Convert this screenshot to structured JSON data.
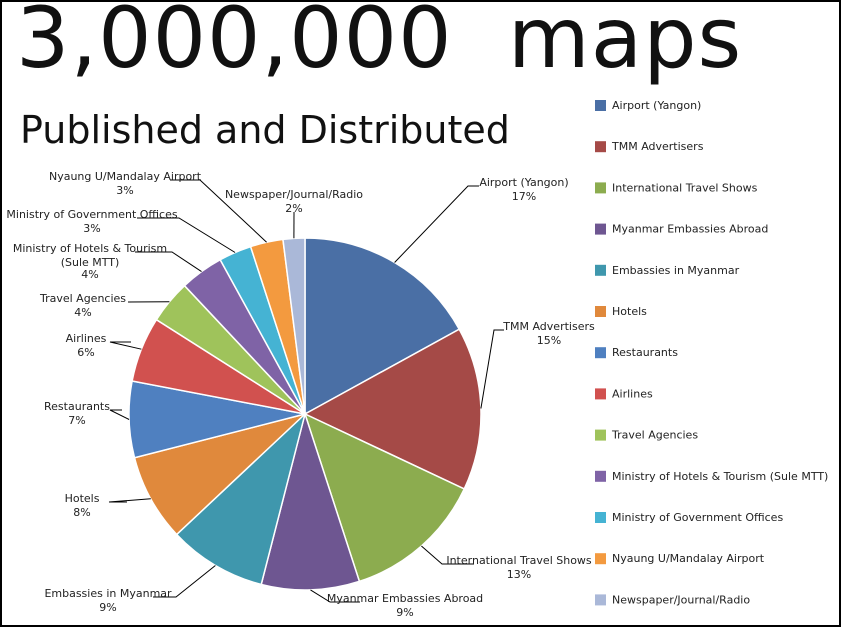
{
  "header": {
    "headline": "3,000,000  maps",
    "subheadline": "Published and Distributed"
  },
  "chart_data": {
    "type": "pie",
    "title": "3,000,000  maps",
    "subtitle": "Published and Distributed",
    "legend_position": "right",
    "slices": [
      {
        "label": "Airport (Yangon)",
        "value": 17,
        "value_label": "17%",
        "color": "#4a6fa5"
      },
      {
        "label": "TMM Advertisers",
        "value": 15,
        "value_label": "15%",
        "color": "#a54a47"
      },
      {
        "label": "International Travel Shows",
        "value": 13,
        "value_label": "13%",
        "color": "#8cac4f"
      },
      {
        "label": "Myanmar Embassies Abroad",
        "value": 9,
        "value_label": "9%",
        "color": "#6e5691"
      },
      {
        "label": "Embassies in Myanmar",
        "value": 9,
        "value_label": "9%",
        "color": "#3f97ad"
      },
      {
        "label": "Hotels",
        "value": 8,
        "value_label": "8%",
        "color": "#e0893c"
      },
      {
        "label": "Restaurants",
        "value": 7,
        "value_label": "7%",
        "color": "#4f80c0"
      },
      {
        "label": "Airlines",
        "value": 6,
        "value_label": "6%",
        "color": "#d1514f"
      },
      {
        "label": "Travel Agencies",
        "value": 4,
        "value_label": "4%",
        "color": "#9fc35b"
      },
      {
        "label": "Ministry of Hotels & Tourism (Sule MTT)",
        "label_lines": [
          "Ministry of Hotels & Tourism",
          "(Sule MTT)"
        ],
        "value": 4,
        "value_label": "4%",
        "color": "#7f63a6"
      },
      {
        "label": "Ministry of Government Offices",
        "value": 3,
        "value_label": "3%",
        "color": "#45b3d3"
      },
      {
        "label": "Nyaung U/Mandalay Airport",
        "value": 3,
        "value_label": "3%",
        "color": "#f39a3f"
      },
      {
        "label": "Newspaper/Journal/Radio",
        "value": 2,
        "value_label": "2%",
        "color": "#aab8d8"
      }
    ]
  }
}
